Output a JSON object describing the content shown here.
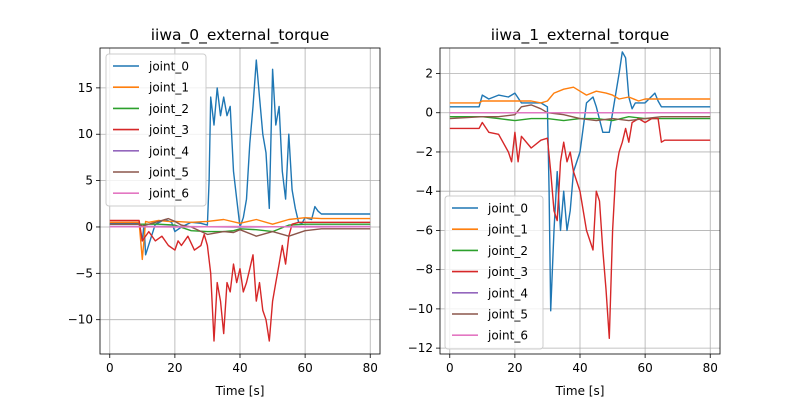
{
  "chart_data": [
    {
      "type": "line",
      "title": "iiwa_0_external_torque",
      "xlabel": "Time [s]",
      "ylabel": "",
      "xlim": [
        -3,
        83
      ],
      "ylim": [
        -13.7,
        19.3
      ],
      "xticks": [
        0,
        20,
        40,
        60,
        80
      ],
      "xtick_labels": [
        "0",
        "20",
        "40",
        "60",
        "80"
      ],
      "yticks": [
        -10,
        -5,
        0,
        5,
        10,
        15
      ],
      "ytick_labels": [
        "−10",
        "−5",
        "0",
        "5",
        "10",
        "15"
      ],
      "grid": true,
      "legend": "upper-left",
      "series": [
        {
          "name": "joint_0",
          "color": "#1f77b4",
          "x": [
            0,
            9,
            10,
            10.5,
            11,
            14,
            17,
            19,
            20,
            22,
            25,
            28,
            30,
            30.5,
            31,
            32,
            33,
            34,
            35,
            36,
            37,
            38,
            39,
            40,
            41,
            42,
            43,
            44,
            45,
            46,
            47,
            48,
            49,
            50,
            51,
            52,
            53,
            54,
            55,
            56,
            57,
            58,
            59,
            60,
            62,
            63,
            64,
            65,
            70,
            75,
            80
          ],
          "y": [
            0.4,
            0.4,
            -1.5,
            0.3,
            -3,
            0.3,
            0.8,
            0.5,
            -0.5,
            0,
            0.5,
            0.4,
            0.2,
            5,
            14,
            11,
            15,
            12,
            14,
            12,
            13,
            6,
            3,
            0,
            1,
            3,
            9,
            13,
            18,
            14,
            10,
            8,
            2,
            17,
            11,
            13,
            6,
            3,
            10,
            4,
            2,
            0.5,
            0.4,
            1,
            0.8,
            2.2,
            1.7,
            1.4,
            1.4,
            1.4,
            1.4
          ]
        },
        {
          "name": "joint_1",
          "color": "#ff7f0e",
          "x": [
            0,
            9,
            10,
            11,
            12,
            15,
            18,
            20,
            25,
            30,
            35,
            40,
            45,
            50,
            55,
            60,
            65,
            70,
            75,
            80
          ],
          "y": [
            0.5,
            0.5,
            -3.5,
            0.6,
            0.5,
            0.7,
            0.6,
            0.6,
            0.5,
            0.6,
            0.8,
            0.4,
            0.8,
            0.3,
            0.8,
            1.0,
            0.9,
            0.9,
            0.9,
            0.9
          ]
        },
        {
          "name": "joint_2",
          "color": "#2ca02c",
          "x": [
            0,
            9,
            10,
            15,
            20,
            25,
            30,
            35,
            38,
            40,
            45,
            50,
            55,
            60,
            65,
            70,
            75,
            80
          ],
          "y": [
            0.3,
            0.3,
            0.3,
            0.3,
            0.2,
            -0.4,
            -0.5,
            -0.5,
            -0.4,
            -0.2,
            -0.3,
            -0.5,
            0.2,
            0.3,
            0.3,
            0.3,
            0.3,
            0.3
          ]
        },
        {
          "name": "joint_3",
          "color": "#d62728",
          "x": [
            0,
            9,
            10,
            12,
            14,
            16,
            18,
            20,
            21,
            22,
            24,
            26,
            28,
            29,
            30,
            31,
            32,
            33,
            34,
            35,
            36,
            37,
            38,
            39,
            40,
            41,
            42,
            43,
            44,
            45,
            46,
            47,
            48,
            49,
            50,
            51,
            52,
            53,
            54,
            55,
            56,
            57,
            58,
            60,
            62,
            65,
            70,
            75,
            80
          ],
          "y": [
            0.7,
            0.7,
            -1.5,
            -0.5,
            -1.5,
            -1,
            -2,
            -2.5,
            -1.5,
            -2,
            -1,
            -2.5,
            -2,
            -0.8,
            -2,
            -5,
            -12.3,
            -6,
            -8,
            -11.5,
            -6,
            -7,
            -4,
            -6,
            -4.5,
            -7,
            -6,
            -4.5,
            -3,
            -8,
            -6,
            -9,
            -10,
            -12.3,
            -8,
            -6,
            -4,
            -2,
            -4,
            -1,
            0.3,
            0.4,
            0.5,
            0.5,
            0.5,
            0.5,
            0.5,
            0.5,
            0.5
          ]
        },
        {
          "name": "joint_4",
          "color": "#9467bd",
          "x": [
            0,
            20,
            40,
            60,
            80
          ],
          "y": [
            0.05,
            0.05,
            0.0,
            0.05,
            0.05
          ]
        },
        {
          "name": "joint_5",
          "color": "#8c564b",
          "x": [
            0,
            9,
            10,
            15,
            18,
            20,
            22,
            25,
            30,
            35,
            38,
            40,
            45,
            50,
            55,
            60,
            65,
            70,
            75,
            80
          ],
          "y": [
            0.3,
            0.3,
            0.1,
            0.6,
            0.9,
            0.6,
            0.2,
            0,
            -0.8,
            -0.5,
            -0.6,
            -0.3,
            -1,
            -0.5,
            -1,
            -0.4,
            -0.2,
            -0.2,
            -0.2,
            -0.2
          ]
        },
        {
          "name": "joint_6",
          "color": "#e377c2",
          "x": [
            0,
            20,
            40,
            60,
            80
          ],
          "y": [
            0.02,
            0.0,
            0.05,
            0.0,
            0.02
          ]
        }
      ]
    },
    {
      "type": "line",
      "title": "iiwa_1_external_torque",
      "xlabel": "Time [s]",
      "ylabel": "",
      "xlim": [
        -3,
        83
      ],
      "ylim": [
        -12.3,
        3.3
      ],
      "xticks": [
        0,
        20,
        40,
        60,
        80
      ],
      "xtick_labels": [
        "0",
        "20",
        "40",
        "60",
        "80"
      ],
      "yticks": [
        -12,
        -10,
        -8,
        -6,
        -4,
        -2,
        0,
        2
      ],
      "ytick_labels": [
        "−12",
        "−10",
        "−8",
        "−6",
        "−4",
        "−2",
        "0",
        "2"
      ],
      "grid": true,
      "legend": "lower-left",
      "series": [
        {
          "name": "joint_0",
          "color": "#1f77b4",
          "x": [
            0,
            9,
            10,
            12,
            15,
            18,
            20,
            22,
            25,
            28,
            29,
            30,
            30.5,
            31,
            32,
            33,
            34,
            35,
            36,
            37,
            38,
            40,
            42,
            44,
            45,
            47,
            49,
            50,
            52,
            53,
            54,
            55,
            56,
            57,
            60,
            63,
            64,
            65,
            66,
            70,
            75,
            80
          ],
          "y": [
            0.3,
            0.3,
            0.9,
            0.7,
            0.9,
            0.8,
            1.0,
            0.5,
            0.5,
            0.5,
            0.4,
            0.3,
            -4,
            -10.1,
            -6,
            -3,
            -6,
            -4,
            -6,
            -5,
            -3,
            -2,
            0.5,
            0.8,
            0.3,
            -1,
            -1,
            0,
            2,
            3.1,
            2.8,
            0.8,
            0.2,
            0.5,
            0.5,
            1.0,
            0.6,
            0.3,
            0.3,
            0.3,
            0.3,
            0.3
          ]
        },
        {
          "name": "joint_1",
          "color": "#ff7f0e",
          "x": [
            0,
            9,
            10,
            15,
            20,
            25,
            28,
            30,
            32,
            35,
            38,
            40,
            42,
            45,
            48,
            50,
            52,
            55,
            58,
            60,
            65,
            70,
            75,
            80
          ],
          "y": [
            0.5,
            0.5,
            0.6,
            0.6,
            0.6,
            0.6,
            0.5,
            0.6,
            1.0,
            1.2,
            1.3,
            1.1,
            0.9,
            1.1,
            1.0,
            0.9,
            0.7,
            0.8,
            0.6,
            0.7,
            0.7,
            0.7,
            0.7,
            0.7
          ]
        },
        {
          "name": "joint_2",
          "color": "#2ca02c",
          "x": [
            0,
            10,
            15,
            20,
            25,
            30,
            35,
            40,
            45,
            50,
            55,
            60,
            65,
            70,
            75,
            80
          ],
          "y": [
            -0.2,
            -0.2,
            -0.3,
            -0.4,
            -0.3,
            -0.3,
            -0.4,
            -0.3,
            -0.3,
            -0.4,
            -0.2,
            -0.3,
            -0.3,
            -0.3,
            -0.3,
            -0.3
          ]
        },
        {
          "name": "joint_3",
          "color": "#d62728",
          "x": [
            0,
            9,
            10,
            12,
            15,
            18,
            19,
            20,
            21,
            22,
            25,
            28,
            30,
            31,
            32,
            33,
            34,
            35,
            36,
            37,
            38,
            40,
            42,
            44,
            45,
            46,
            47,
            48,
            49,
            50,
            51,
            52,
            53,
            54,
            55,
            56,
            58,
            60,
            62,
            64,
            65,
            66,
            70,
            75,
            80
          ],
          "y": [
            -0.8,
            -0.8,
            -0.5,
            -1,
            -1.1,
            -2,
            -2.5,
            -1,
            -2.5,
            -1.2,
            -1.8,
            -1.4,
            -1.3,
            -3,
            -5,
            -5.5,
            -2.5,
            -1.5,
            -2.5,
            -2,
            -3,
            -4,
            -6,
            -7,
            -4,
            -4.5,
            -7,
            -9,
            -11.5,
            -6,
            -3,
            -2,
            -1.5,
            -0.8,
            -1.5,
            -0.5,
            -0.3,
            -0.5,
            -0.3,
            -0.3,
            -1.5,
            -1.4,
            -1.4,
            -1.4,
            -1.4
          ]
        },
        {
          "name": "joint_4",
          "color": "#9467bd",
          "x": [
            0,
            20,
            40,
            60,
            80
          ],
          "y": [
            0.0,
            0.0,
            0.0,
            0.0,
            0.0
          ]
        },
        {
          "name": "joint_5",
          "color": "#8c564b",
          "x": [
            0,
            10,
            15,
            20,
            22,
            25,
            28,
            30,
            35,
            40,
            45,
            50,
            55,
            60,
            65,
            70,
            75,
            80
          ],
          "y": [
            -0.3,
            -0.2,
            -0.2,
            -0.1,
            0.3,
            0.4,
            0.2,
            0,
            -0.1,
            -0.3,
            -0.4,
            -0.3,
            -0.4,
            -0.3,
            -0.2,
            -0.2,
            -0.2,
            -0.2
          ]
        },
        {
          "name": "joint_6",
          "color": "#e377c2",
          "x": [
            0,
            20,
            40,
            60,
            80
          ],
          "y": [
            0.0,
            0.0,
            0.0,
            0.0,
            0.0
          ]
        }
      ]
    }
  ]
}
